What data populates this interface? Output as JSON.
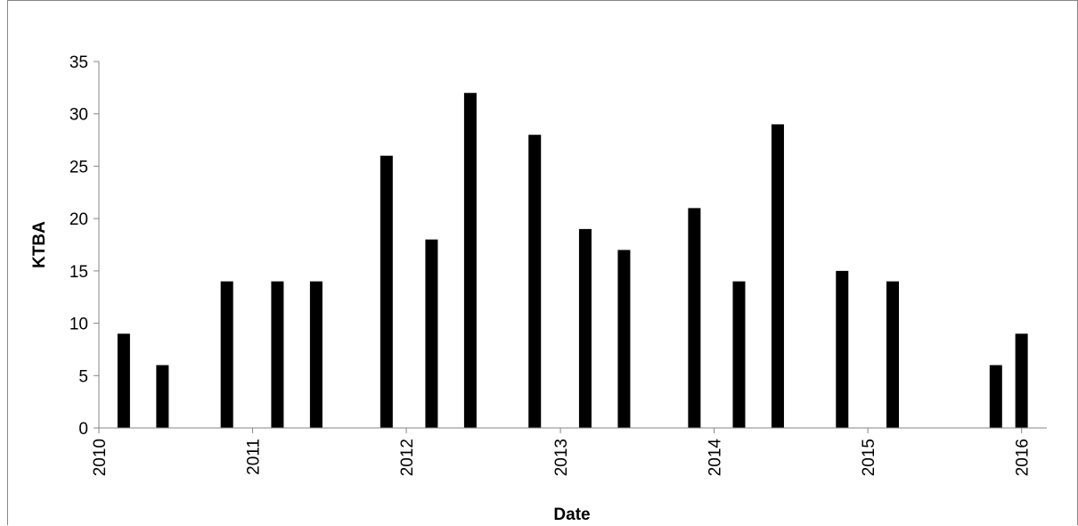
{
  "chart_data": {
    "type": "bar",
    "title": "",
    "xlabel": "Date",
    "ylabel": "KTBA",
    "ylim": [
      0,
      35
    ],
    "yticks": [
      0,
      5,
      10,
      15,
      20,
      25,
      30,
      35
    ],
    "xlim": [
      "2010-01-01",
      "2016-03-01"
    ],
    "xticks": [
      "2010",
      "2011",
      "2012",
      "2013",
      "2014",
      "2015",
      "2016"
    ],
    "grid": false,
    "legend": "none",
    "bar_color": "#000000",
    "points": [
      {
        "date": "2010-03-01",
        "value": 9
      },
      {
        "date": "2010-06-01",
        "value": 6
      },
      {
        "date": "2010-11-01",
        "value": 14
      },
      {
        "date": "2011-03-01",
        "value": 14
      },
      {
        "date": "2011-06-01",
        "value": 14
      },
      {
        "date": "2011-11-15",
        "value": 26
      },
      {
        "date": "2012-03-01",
        "value": 18
      },
      {
        "date": "2012-06-01",
        "value": 32
      },
      {
        "date": "2012-11-01",
        "value": 28
      },
      {
        "date": "2013-03-01",
        "value": 19
      },
      {
        "date": "2013-06-01",
        "value": 17
      },
      {
        "date": "2013-11-15",
        "value": 21
      },
      {
        "date": "2014-03-01",
        "value": 14
      },
      {
        "date": "2014-06-01",
        "value": 29
      },
      {
        "date": "2014-11-01",
        "value": 15
      },
      {
        "date": "2015-03-01",
        "value": 14
      },
      {
        "date": "2015-11-01",
        "value": 6
      },
      {
        "date": "2016-01-01",
        "value": 9
      }
    ]
  }
}
